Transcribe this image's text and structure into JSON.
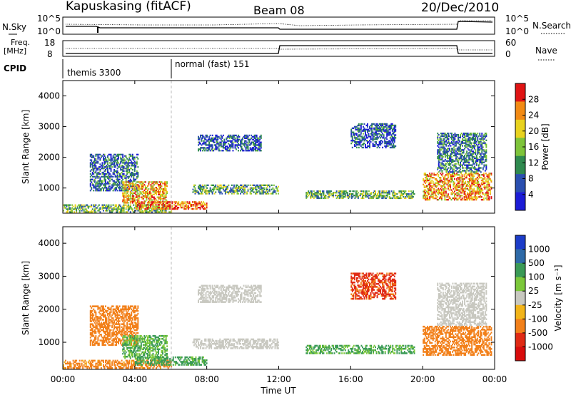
{
  "header": {
    "station": "Kapuskasing (fitACF)",
    "beam": "Beam 08",
    "date": "20/Dec/2010"
  },
  "noise_panel": {
    "left_label": "N.Sky",
    "right_label": "N.Search",
    "left_ticks": [
      "10^5",
      "10^0"
    ],
    "right_ticks": [
      "10^5",
      "10^0"
    ]
  },
  "freq_panel": {
    "left_label_line1": "Freq.",
    "left_label_line2": "[MHz]",
    "right_label": "Nave",
    "left_ticks": [
      "18",
      "8"
    ],
    "right_ticks": [
      "60",
      "0"
    ]
  },
  "cpid_panel": {
    "label": "CPID",
    "modes": [
      {
        "name": "themis 3300",
        "start_hour": 0
      },
      {
        "name": "normal (fast) 151",
        "start_hour": 6
      }
    ]
  },
  "chart_data": [
    {
      "type": "heatmap",
      "panel": "power",
      "xlabel": "",
      "ylabel": "Slant Range [km]",
      "xlim": [
        0,
        24
      ],
      "ylim": [
        180,
        4500
      ],
      "x_ticks": [
        "00:00",
        "04:00",
        "08:00",
        "12:00",
        "16:00",
        "20:00",
        "00:00"
      ],
      "y_ticks": [
        1000,
        2000,
        3000,
        4000
      ],
      "colorbar": {
        "label": "Power [dB]",
        "ticks": [
          "4",
          "8",
          "12",
          "16",
          "20",
          "24",
          "28"
        ],
        "colors": [
          "#1c1cd6",
          "#2a4fb0",
          "#2f8a4f",
          "#7ec43a",
          "#e8d21e",
          "#f28a14",
          "#e01414"
        ]
      },
      "echo_regions": [
        {
          "t0": 0.0,
          "t1": 6.0,
          "r0": 200,
          "r1": 450,
          "level": 0.45
        },
        {
          "t0": 1.5,
          "t1": 4.2,
          "r0": 900,
          "r1": 2100,
          "level": 0.25
        },
        {
          "t0": 3.3,
          "t1": 5.8,
          "r0": 500,
          "r1": 1200,
          "level": 0.7
        },
        {
          "t0": 4.0,
          "t1": 8.0,
          "r0": 300,
          "r1": 550,
          "level": 0.85
        },
        {
          "t0": 7.5,
          "t1": 11.0,
          "r0": 2200,
          "r1": 2700,
          "level": 0.2
        },
        {
          "t0": 7.2,
          "t1": 12.0,
          "r0": 800,
          "r1": 1100,
          "level": 0.4
        },
        {
          "t0": 13.5,
          "t1": 19.5,
          "r0": 650,
          "r1": 900,
          "level": 0.45
        },
        {
          "t0": 16.0,
          "t1": 18.5,
          "r0": 2300,
          "r1": 3100,
          "level": 0.2
        },
        {
          "t0": 20.0,
          "t1": 23.8,
          "r0": 600,
          "r1": 1500,
          "level": 0.75
        },
        {
          "t0": 20.8,
          "t1": 23.5,
          "r0": 1500,
          "r1": 2800,
          "level": 0.3
        }
      ]
    },
    {
      "type": "heatmap",
      "panel": "velocity",
      "xlabel": "Time UT",
      "ylabel": "Slant Range [km]",
      "xlim": [
        0,
        24
      ],
      "ylim": [
        180,
        4500
      ],
      "x_ticks": [
        "00:00",
        "04:00",
        "08:00",
        "12:00",
        "16:00",
        "20:00",
        "00:00"
      ],
      "y_ticks": [
        1000,
        2000,
        3000,
        4000
      ],
      "colorbar": {
        "label": "Velocity [m s⁻¹]",
        "ticks": [
          "1000",
          "500",
          "100",
          "25",
          "-25",
          "-100",
          "-500",
          "-1000"
        ],
        "colors": [
          "#1c3cc8",
          "#2e6aa8",
          "#3a9a56",
          "#7cc83a",
          "#c8c8c0",
          "#f2b419",
          "#f2801a",
          "#e02a14",
          "#d80c0c"
        ]
      },
      "echo_regions": [
        {
          "t0": 0.0,
          "t1": 6.0,
          "r0": 200,
          "r1": 450,
          "vel": -150
        },
        {
          "t0": 1.5,
          "t1": 4.2,
          "r0": 900,
          "r1": 2100,
          "vel": -200
        },
        {
          "t0": 3.3,
          "t1": 5.8,
          "r0": 500,
          "r1": 1200,
          "vel": 60
        },
        {
          "t0": 4.0,
          "t1": 8.0,
          "r0": 300,
          "r1": 550,
          "vel": 80
        },
        {
          "t0": 7.5,
          "t1": 11.0,
          "r0": 2200,
          "r1": 2700,
          "vel": 0
        },
        {
          "t0": 7.2,
          "t1": 12.0,
          "r0": 800,
          "r1": 1100,
          "vel": 10
        },
        {
          "t0": 13.5,
          "t1": 19.5,
          "r0": 650,
          "r1": 900,
          "vel": 70
        },
        {
          "t0": 16.0,
          "t1": 18.5,
          "r0": 2300,
          "r1": 3100,
          "vel": -600
        },
        {
          "t0": 20.0,
          "t1": 23.8,
          "r0": 600,
          "r1": 1500,
          "vel": -300
        },
        {
          "t0": 20.8,
          "t1": 23.5,
          "r0": 1500,
          "r1": 2800,
          "vel": -5
        }
      ]
    }
  ]
}
